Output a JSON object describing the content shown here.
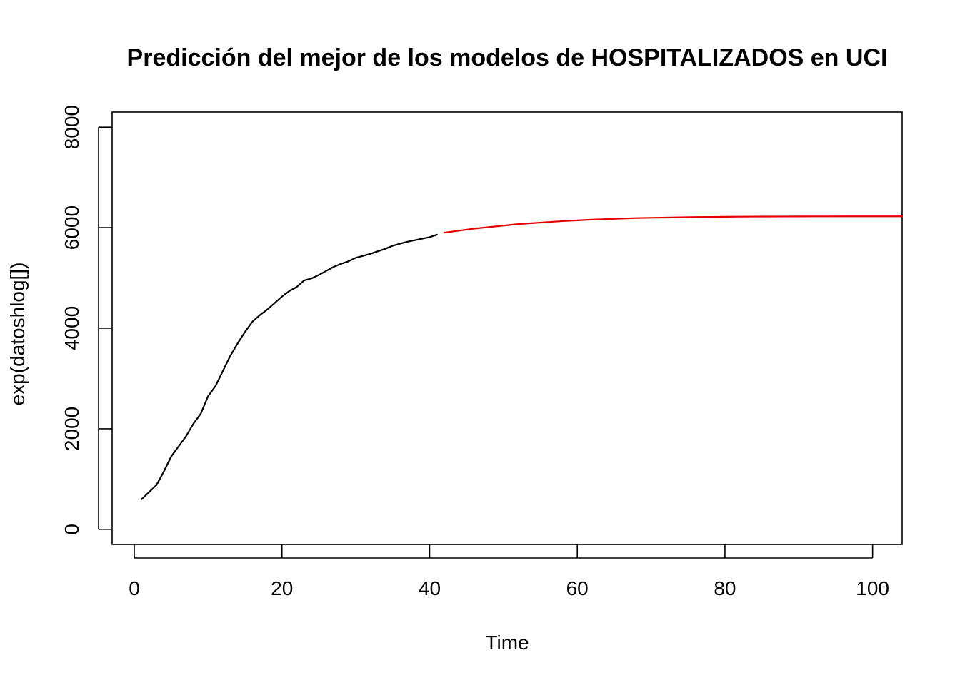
{
  "chart_data": {
    "type": "line",
    "title": "Predicción del mejor de los modelos de HOSPITALIZADOS en UCI",
    "xlabel": "Time",
    "ylabel": "exp(datoshlog[])",
    "xlim": [
      -3,
      104
    ],
    "ylim": [
      -300,
      8300
    ],
    "x_ticks": [
      0,
      20,
      40,
      60,
      80,
      100
    ],
    "x_tick_labels": [
      "0",
      "20",
      "40",
      "60",
      "80",
      "100"
    ],
    "y_ticks": [
      0,
      2000,
      4000,
      6000,
      8000
    ],
    "y_tick_labels": [
      "0",
      "2000",
      "4000",
      "6000",
      "8000"
    ],
    "grid": false,
    "legend": "none",
    "series": [
      {
        "color": "#000000",
        "x": [
          1,
          2,
          3,
          4,
          5,
          6,
          7,
          8,
          9,
          10,
          11,
          12,
          13,
          14,
          15,
          16,
          17,
          18,
          19,
          20,
          21,
          22,
          23,
          24,
          25,
          26,
          27,
          28,
          29,
          30,
          31,
          32,
          33,
          34,
          35,
          36,
          37,
          38,
          39,
          40,
          41
        ],
        "values": [
          600,
          740,
          880,
          1150,
          1450,
          1650,
          1850,
          2100,
          2300,
          2650,
          2850,
          3150,
          3450,
          3700,
          3930,
          4130,
          4260,
          4370,
          4500,
          4630,
          4740,
          4820,
          4950,
          4990,
          5060,
          5140,
          5220,
          5280,
          5330,
          5400,
          5440,
          5480,
          5530,
          5580,
          5640,
          5680,
          5720,
          5750,
          5780,
          5810,
          5860
        ]
      },
      {
        "color": "#e60000",
        "x": [
          42,
          44,
          46,
          48,
          50,
          52,
          54,
          56,
          58,
          60,
          62,
          64,
          66,
          68,
          70,
          72,
          74,
          76,
          78,
          80,
          82,
          84,
          86,
          88,
          90,
          92,
          94,
          96,
          98,
          100,
          102,
          104
        ],
        "values": [
          5900,
          5940,
          5980,
          6010,
          6040,
          6070,
          6090,
          6110,
          6130,
          6145,
          6160,
          6170,
          6180,
          6190,
          6195,
          6200,
          6205,
          6210,
          6213,
          6216,
          6218,
          6220,
          6221,
          6222,
          6223,
          6224,
          6224,
          6225,
          6225,
          6225,
          6225,
          6225
        ]
      }
    ]
  }
}
